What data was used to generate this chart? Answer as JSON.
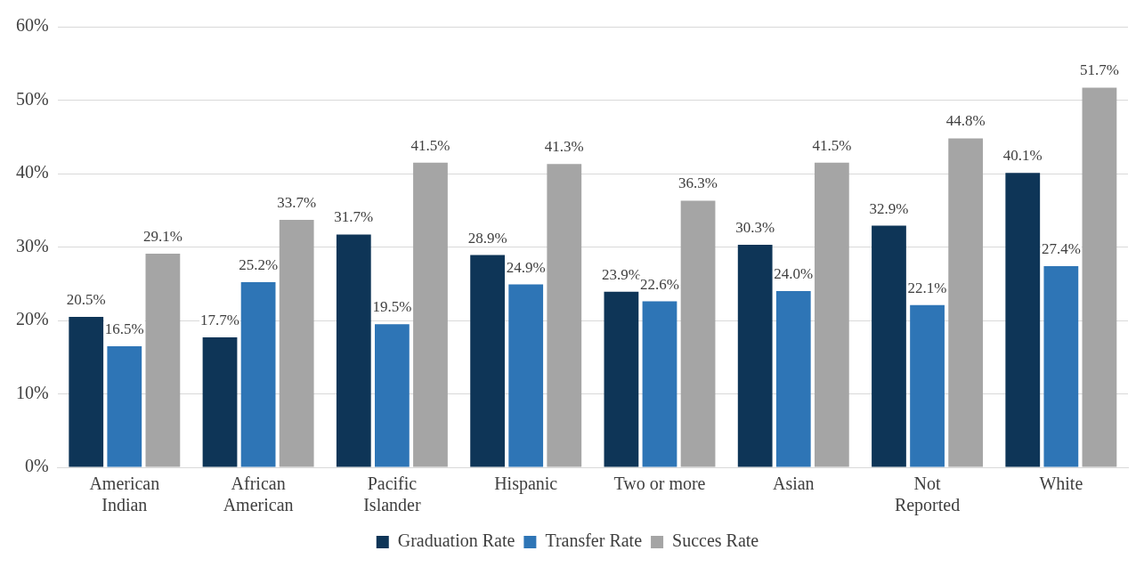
{
  "chart_data": {
    "type": "bar",
    "categories": [
      "American Indian",
      "African American",
      "Pacific Islander",
      "Hispanic",
      "Two or more",
      "Asian",
      "Not Reported",
      "White"
    ],
    "series": [
      {
        "name": "Graduation Rate",
        "color": "#0e3557",
        "values": [
          20.5,
          17.7,
          31.7,
          28.9,
          23.9,
          30.3,
          32.9,
          40.1
        ],
        "value_labels": [
          "20.5%",
          "17.7%",
          "31.7%",
          "28.9%",
          "23.9%",
          "30.3%",
          "32.9%",
          "40.1%"
        ]
      },
      {
        "name": "Transfer Rate",
        "color": "#2e75b6",
        "values": [
          16.5,
          25.2,
          19.5,
          24.9,
          22.6,
          24.0,
          22.1,
          27.4
        ],
        "value_labels": [
          "16.5%",
          "25.2%",
          "19.5%",
          "24.9%",
          "22.6%",
          "24.0%",
          "22.1%",
          "27.4%"
        ]
      },
      {
        "name": "Succes Rate",
        "color": "#a5a5a5",
        "values": [
          29.1,
          33.7,
          41.5,
          41.3,
          36.3,
          41.5,
          44.8,
          51.7
        ],
        "value_labels": [
          "29.1%",
          "33.7%",
          "41.5%",
          "41.3%",
          "36.3%",
          "41.5%",
          "44.8%",
          "51.7%"
        ]
      }
    ],
    "ylim": [
      0,
      60
    ],
    "yticks": [
      {
        "value": 0,
        "label": "0%"
      },
      {
        "value": 10,
        "label": "10%"
      },
      {
        "value": 20,
        "label": "20%"
      },
      {
        "value": 30,
        "label": "30%"
      },
      {
        "value": 40,
        "label": "40%"
      },
      {
        "value": 50,
        "label": "50%"
      },
      {
        "value": 60,
        "label": "60%"
      }
    ],
    "grid": "y",
    "legend": "bottom"
  }
}
